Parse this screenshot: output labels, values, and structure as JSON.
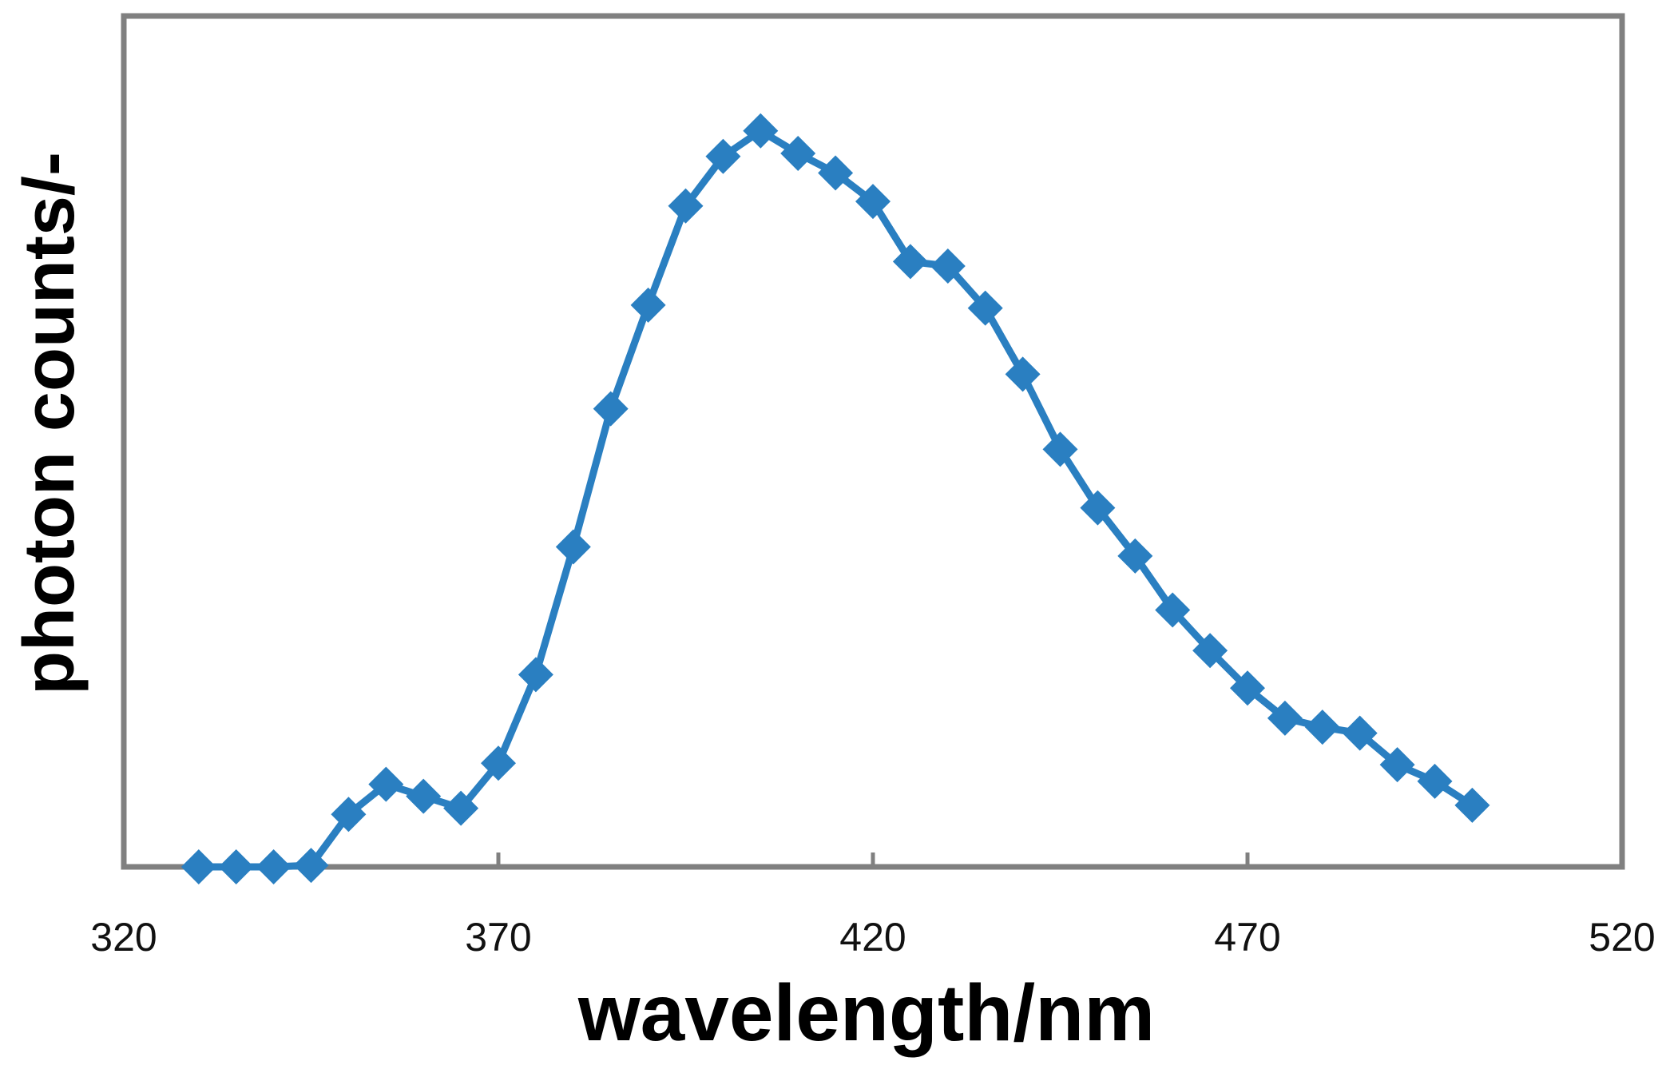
{
  "chart_data": {
    "type": "line",
    "title": "",
    "xlabel": "wavelength/nm",
    "ylabel": "photon counts/-",
    "xlim": [
      320,
      520
    ],
    "ylim": [
      0,
      1
    ],
    "xticks": [
      "320",
      "370",
      "420",
      "470",
      "520"
    ],
    "grid": false,
    "legend": "none",
    "marker": "diamond",
    "colors": {
      "series": "#2a7fc1",
      "frame": "#808080",
      "text": "#000000"
    },
    "series": [
      {
        "x": [
          330,
          335,
          340,
          345,
          350,
          355,
          360,
          365,
          370,
          375,
          380,
          385,
          390,
          395,
          400,
          405,
          410,
          415,
          420,
          425,
          430,
          435,
          440,
          445,
          450,
          455,
          460,
          465,
          470,
          475,
          480,
          485,
          490,
          495,
          500
        ],
        "y": [
          0.0,
          0.0,
          0.0,
          0.002,
          0.07,
          0.11,
          0.094,
          0.078,
          0.138,
          0.256,
          0.426,
          0.61,
          0.748,
          0.88,
          0.946,
          0.98,
          0.95,
          0.924,
          0.886,
          0.806,
          0.8,
          0.744,
          0.656,
          0.556,
          0.478,
          0.414,
          0.342,
          0.288,
          0.238,
          0.198,
          0.186,
          0.178,
          0.136,
          0.114,
          0.082
        ]
      }
    ]
  }
}
